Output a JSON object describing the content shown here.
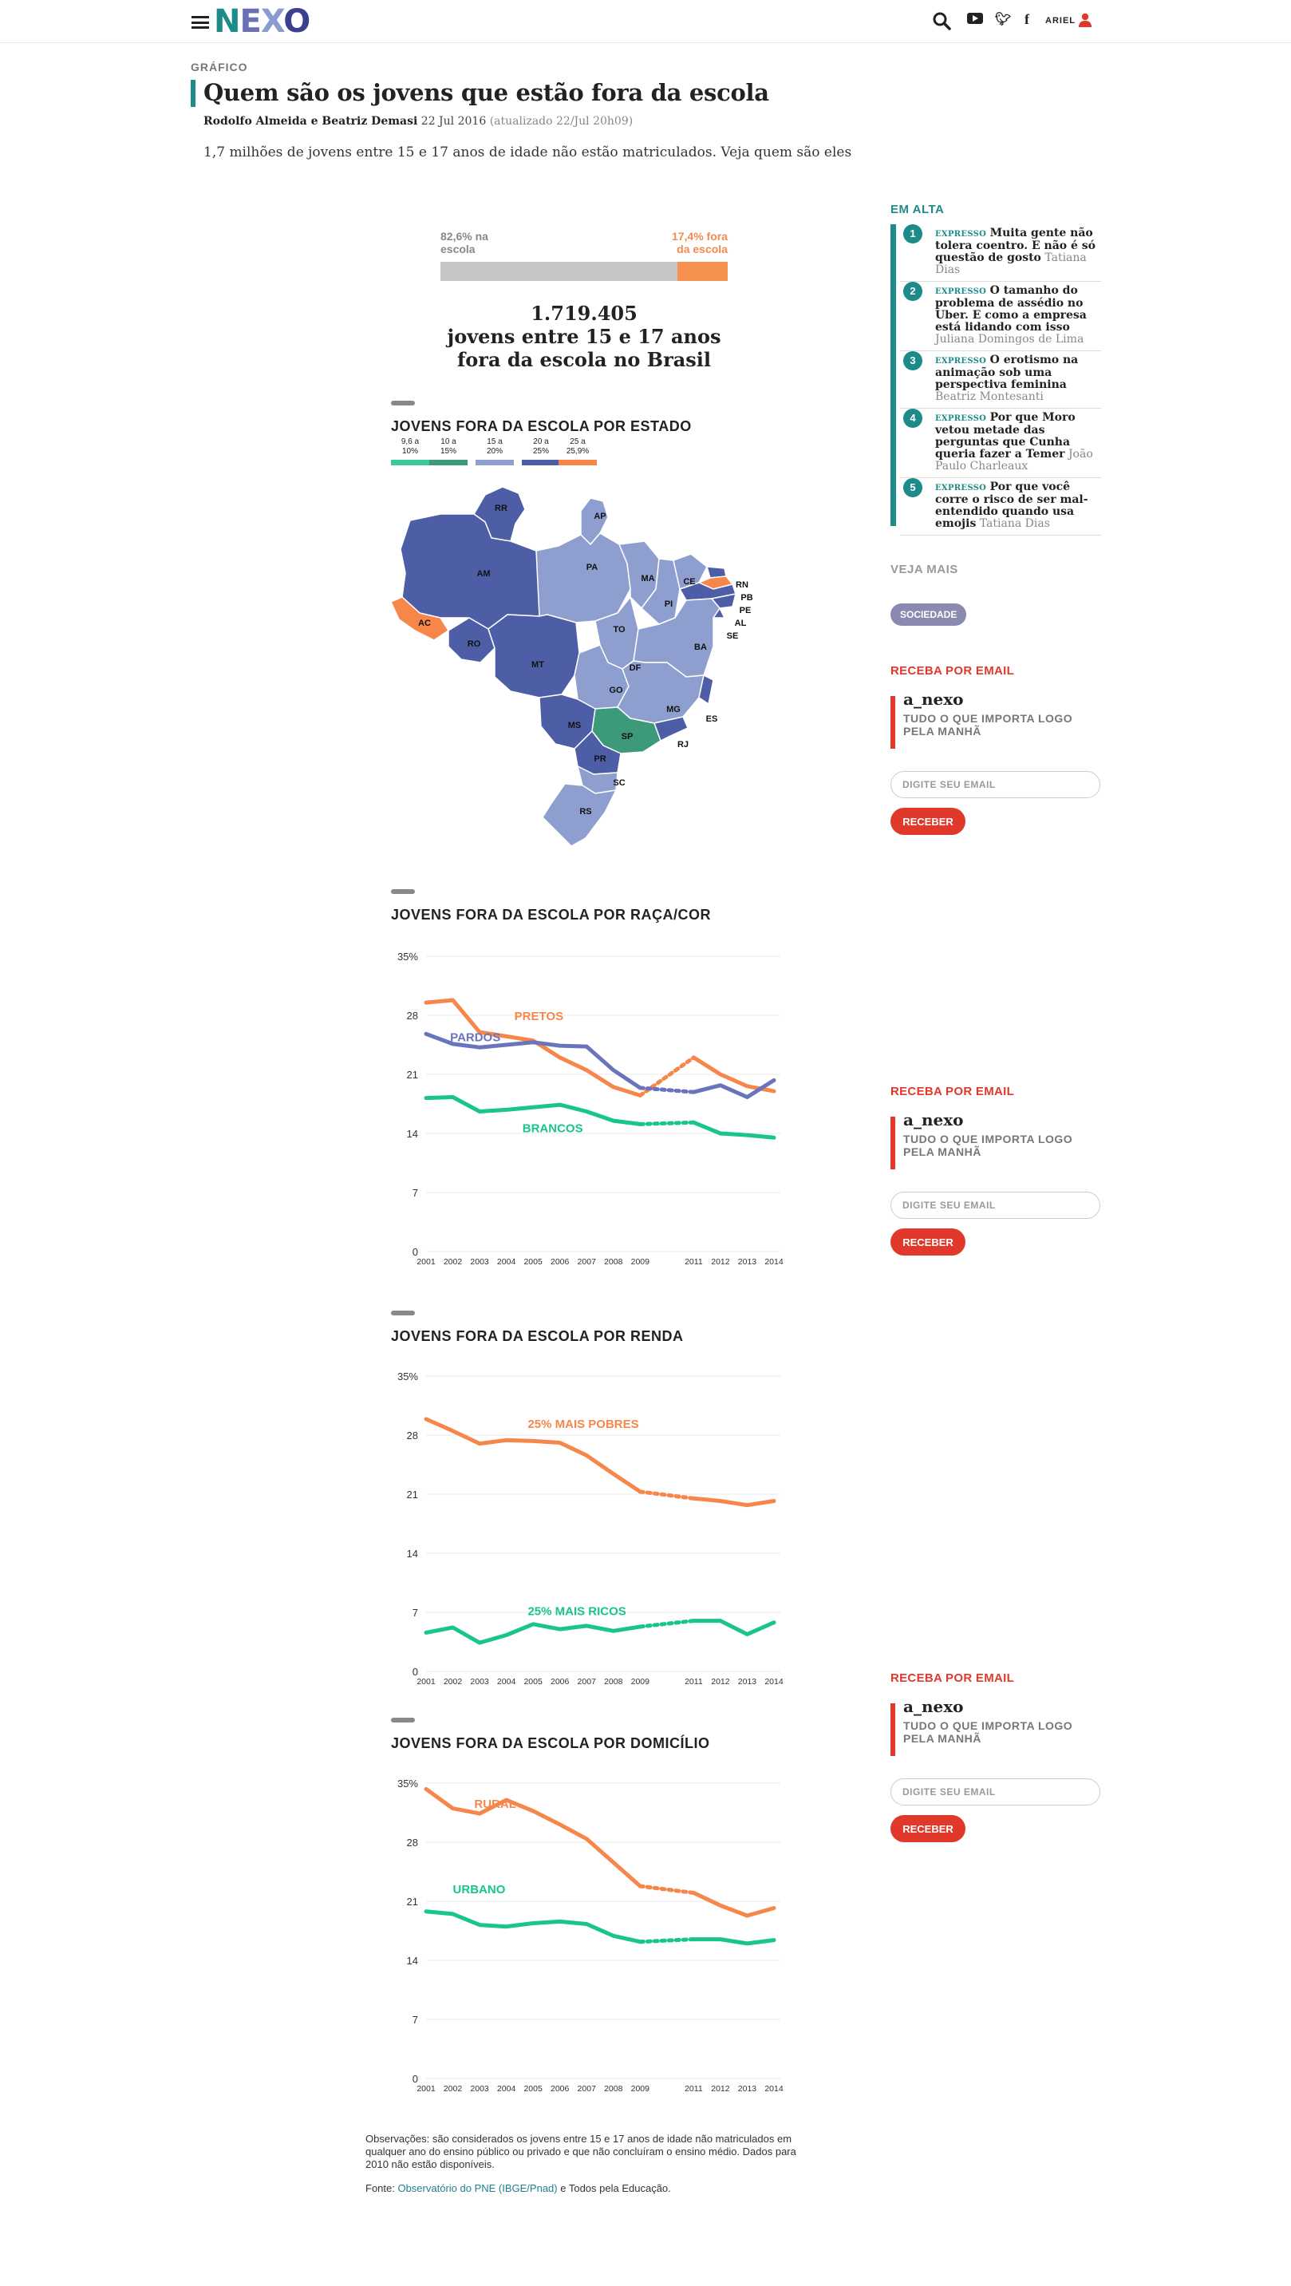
{
  "header": {
    "logo": "NEXO",
    "user_label": "ARIEL"
  },
  "article": {
    "kicker": "GRÁFICO",
    "title": "Quem são os jovens que estão fora da escola",
    "authors": "Rodolfo Almeida e Beatriz Demasi",
    "date": "22 Jul 2016",
    "updated": "(atualizado 22/Jul 20h09)",
    "lede": "1,7 milhões de jovens entre 15 e 17 anos de idade não estão matriculados. Veja quem são eles"
  },
  "school_share": {
    "in_label_1": "82,6% na",
    "in_label_2": "escola",
    "out_label_1": "17,4% fora",
    "out_label_2": "da escola",
    "in_pct": 82.6,
    "out_pct": 17.4,
    "total_1": "1.719.405",
    "total_2": "jovens entre 15 e 17 anos",
    "total_3": "fora da escola no Brasil"
  },
  "map": {
    "title": "JOVENS FORA DA ESCOLA POR ESTADO",
    "legend": [
      {
        "l1": "9,6 a",
        "l2": "10%",
        "color": "#39c99a"
      },
      {
        "l1": "10 a",
        "l2": "15%",
        "color": "#3c9a7b"
      },
      {
        "l1": "15 a",
        "l2": "20%",
        "color": "#8e9ecf"
      },
      {
        "l1": "20 a",
        "l2": "25%",
        "color": "#4d5ea6"
      },
      {
        "l1": "25 a",
        "l2": "25,9%",
        "color": "#f7864a"
      }
    ],
    "states": [
      "RR",
      "AP",
      "AM",
      "PA",
      "MA",
      "CE",
      "RN",
      "PB",
      "PE",
      "AL",
      "SE",
      "PI",
      "AC",
      "RO",
      "TO",
      "BA",
      "MT",
      "DF",
      "GO",
      "MG",
      "ES",
      "MS",
      "SP",
      "RJ",
      "PR",
      "SC",
      "RS"
    ]
  },
  "chart_data": [
    {
      "type": "line",
      "title": "JOVENS FORA DA ESCOLA POR RAÇA/COR",
      "x": [
        2001,
        2002,
        2003,
        2004,
        2005,
        2006,
        2007,
        2008,
        2009,
        2010,
        2011,
        2012,
        2013,
        2014
      ],
      "x_labels": [
        "2001",
        "2002",
        "2003",
        "2004",
        "2005",
        "2006",
        "2007",
        "2008",
        "2009",
        "",
        "2011",
        "2012",
        "2013",
        "2014"
      ],
      "ylim": [
        0,
        35
      ],
      "yticks": [
        "35%",
        "28",
        "21",
        "14",
        "7",
        "0"
      ],
      "grid": true,
      "series": [
        {
          "name": "PRETOS",
          "color": "#f7864a",
          "values": [
            29.5,
            29.8,
            26.0,
            25.5,
            25.0,
            23.0,
            21.5,
            19.5,
            18.5,
            null,
            23.0,
            21.0,
            19.6,
            19.0
          ]
        },
        {
          "name": "PARDOS",
          "color": "#6a74bd",
          "values": [
            25.8,
            24.6,
            24.2,
            24.5,
            24.8,
            24.4,
            24.3,
            21.5,
            19.4,
            null,
            18.9,
            19.7,
            18.3,
            20.3
          ]
        },
        {
          "name": "BRANCOS",
          "color": "#19c48e",
          "values": [
            18.2,
            18.3,
            16.6,
            16.8,
            17.1,
            17.4,
            16.6,
            15.5,
            15.1,
            null,
            15.3,
            14.0,
            13.8,
            13.5
          ]
        }
      ]
    },
    {
      "type": "line",
      "title": "JOVENS FORA DA ESCOLA POR RENDA",
      "x": [
        2001,
        2002,
        2003,
        2004,
        2005,
        2006,
        2007,
        2008,
        2009,
        2010,
        2011,
        2012,
        2013,
        2014
      ],
      "x_labels": [
        "2001",
        "2002",
        "2003",
        "2004",
        "2005",
        "2006",
        "2007",
        "2008",
        "2009",
        "",
        "2011",
        "2012",
        "2013",
        "2014"
      ],
      "ylim": [
        0,
        35
      ],
      "yticks": [
        "35%",
        "28",
        "21",
        "14",
        "7",
        "0"
      ],
      "grid": true,
      "series": [
        {
          "name": "25% MAIS POBRES",
          "color": "#f7864a",
          "values": [
            29.9,
            28.5,
            27.0,
            27.4,
            27.3,
            27.1,
            25.6,
            23.4,
            21.3,
            null,
            20.5,
            20.2,
            19.7,
            20.2
          ]
        },
        {
          "name": "25% MAIS RICOS",
          "color": "#19c48e",
          "values": [
            4.6,
            5.2,
            3.4,
            4.3,
            5.6,
            5.0,
            5.4,
            4.8,
            5.3,
            null,
            6.0,
            6.0,
            4.4,
            5.8
          ]
        }
      ]
    },
    {
      "type": "line",
      "title": "JOVENS FORA DA ESCOLA POR DOMICÍLIO",
      "x": [
        2001,
        2002,
        2003,
        2004,
        2005,
        2006,
        2007,
        2008,
        2009,
        2010,
        2011,
        2012,
        2013,
        2014
      ],
      "x_labels": [
        "2001",
        "2002",
        "2003",
        "2004",
        "2005",
        "2006",
        "2007",
        "2008",
        "2009",
        "",
        "2011",
        "2012",
        "2013",
        "2014"
      ],
      "ylim": [
        0,
        35
      ],
      "yticks": [
        "35%",
        "28",
        "21",
        "14",
        "7",
        "0"
      ],
      "grid": true,
      "series": [
        {
          "name": "RURAL",
          "color": "#f7864a",
          "values": [
            34.3,
            32.0,
            31.4,
            33.0,
            31.7,
            30.1,
            28.4,
            25.6,
            22.8,
            null,
            22.0,
            20.5,
            19.3,
            20.2
          ]
        },
        {
          "name": "URBANO",
          "color": "#19c48e",
          "values": [
            19.8,
            19.5,
            18.2,
            18.0,
            18.4,
            18.6,
            18.3,
            16.9,
            16.2,
            null,
            16.5,
            16.5,
            16.0,
            16.4
          ]
        }
      ]
    }
  ],
  "notes": {
    "obs": "Observações: são considerados os jovens entre 15 e 17 anos de idade não matriculados em qualquer ano do ensino público ou privado e que não concluíram o ensino médio. Dados para 2010 não estão disponíveis.",
    "fonte_prefix": "Fonte: ",
    "fonte_link": "Observatório do PNE (IBGE/Pnad)",
    "fonte_suffix": " e Todos pela Educação."
  },
  "sidebar": {
    "em_alta_title": "EM ALTA",
    "em_alta": [
      {
        "num": "1",
        "tag": "EXPRESSO",
        "headline": "Muita gente não tolera coentro. E não é só questão de gosto",
        "author": "Tatiana Dias"
      },
      {
        "num": "2",
        "tag": "EXPRESSO",
        "headline": "O tamanho do problema de assédio no Uber. E como a empresa está lidando com isso",
        "author": "Juliana Domingos de Lima"
      },
      {
        "num": "3",
        "tag": "EXPRESSO",
        "headline": "O erotismo na animação sob uma perspectiva feminina",
        "author": "Beatriz Montesanti"
      },
      {
        "num": "4",
        "tag": "EXPRESSO",
        "headline": "Por que Moro vetou metade das perguntas que Cunha queria fazer a Temer",
        "author": "João Paulo Charleaux"
      },
      {
        "num": "5",
        "tag": "EXPRESSO",
        "headline": "Por que você corre o risco de ser mal-entendido quando usa emojis",
        "author": "Tatiana Dias"
      }
    ],
    "veja_mais": "VEJA MAIS",
    "tag": "SOCIEDADE",
    "newsletter": {
      "title": "RECEBA POR EMAIL",
      "name": "a_nexo",
      "desc": "TUDO O QUE IMPORTA LOGO PELA MANHÃ",
      "placeholder": "DIGITE SEU EMAIL",
      "button": "RECEBER"
    }
  }
}
